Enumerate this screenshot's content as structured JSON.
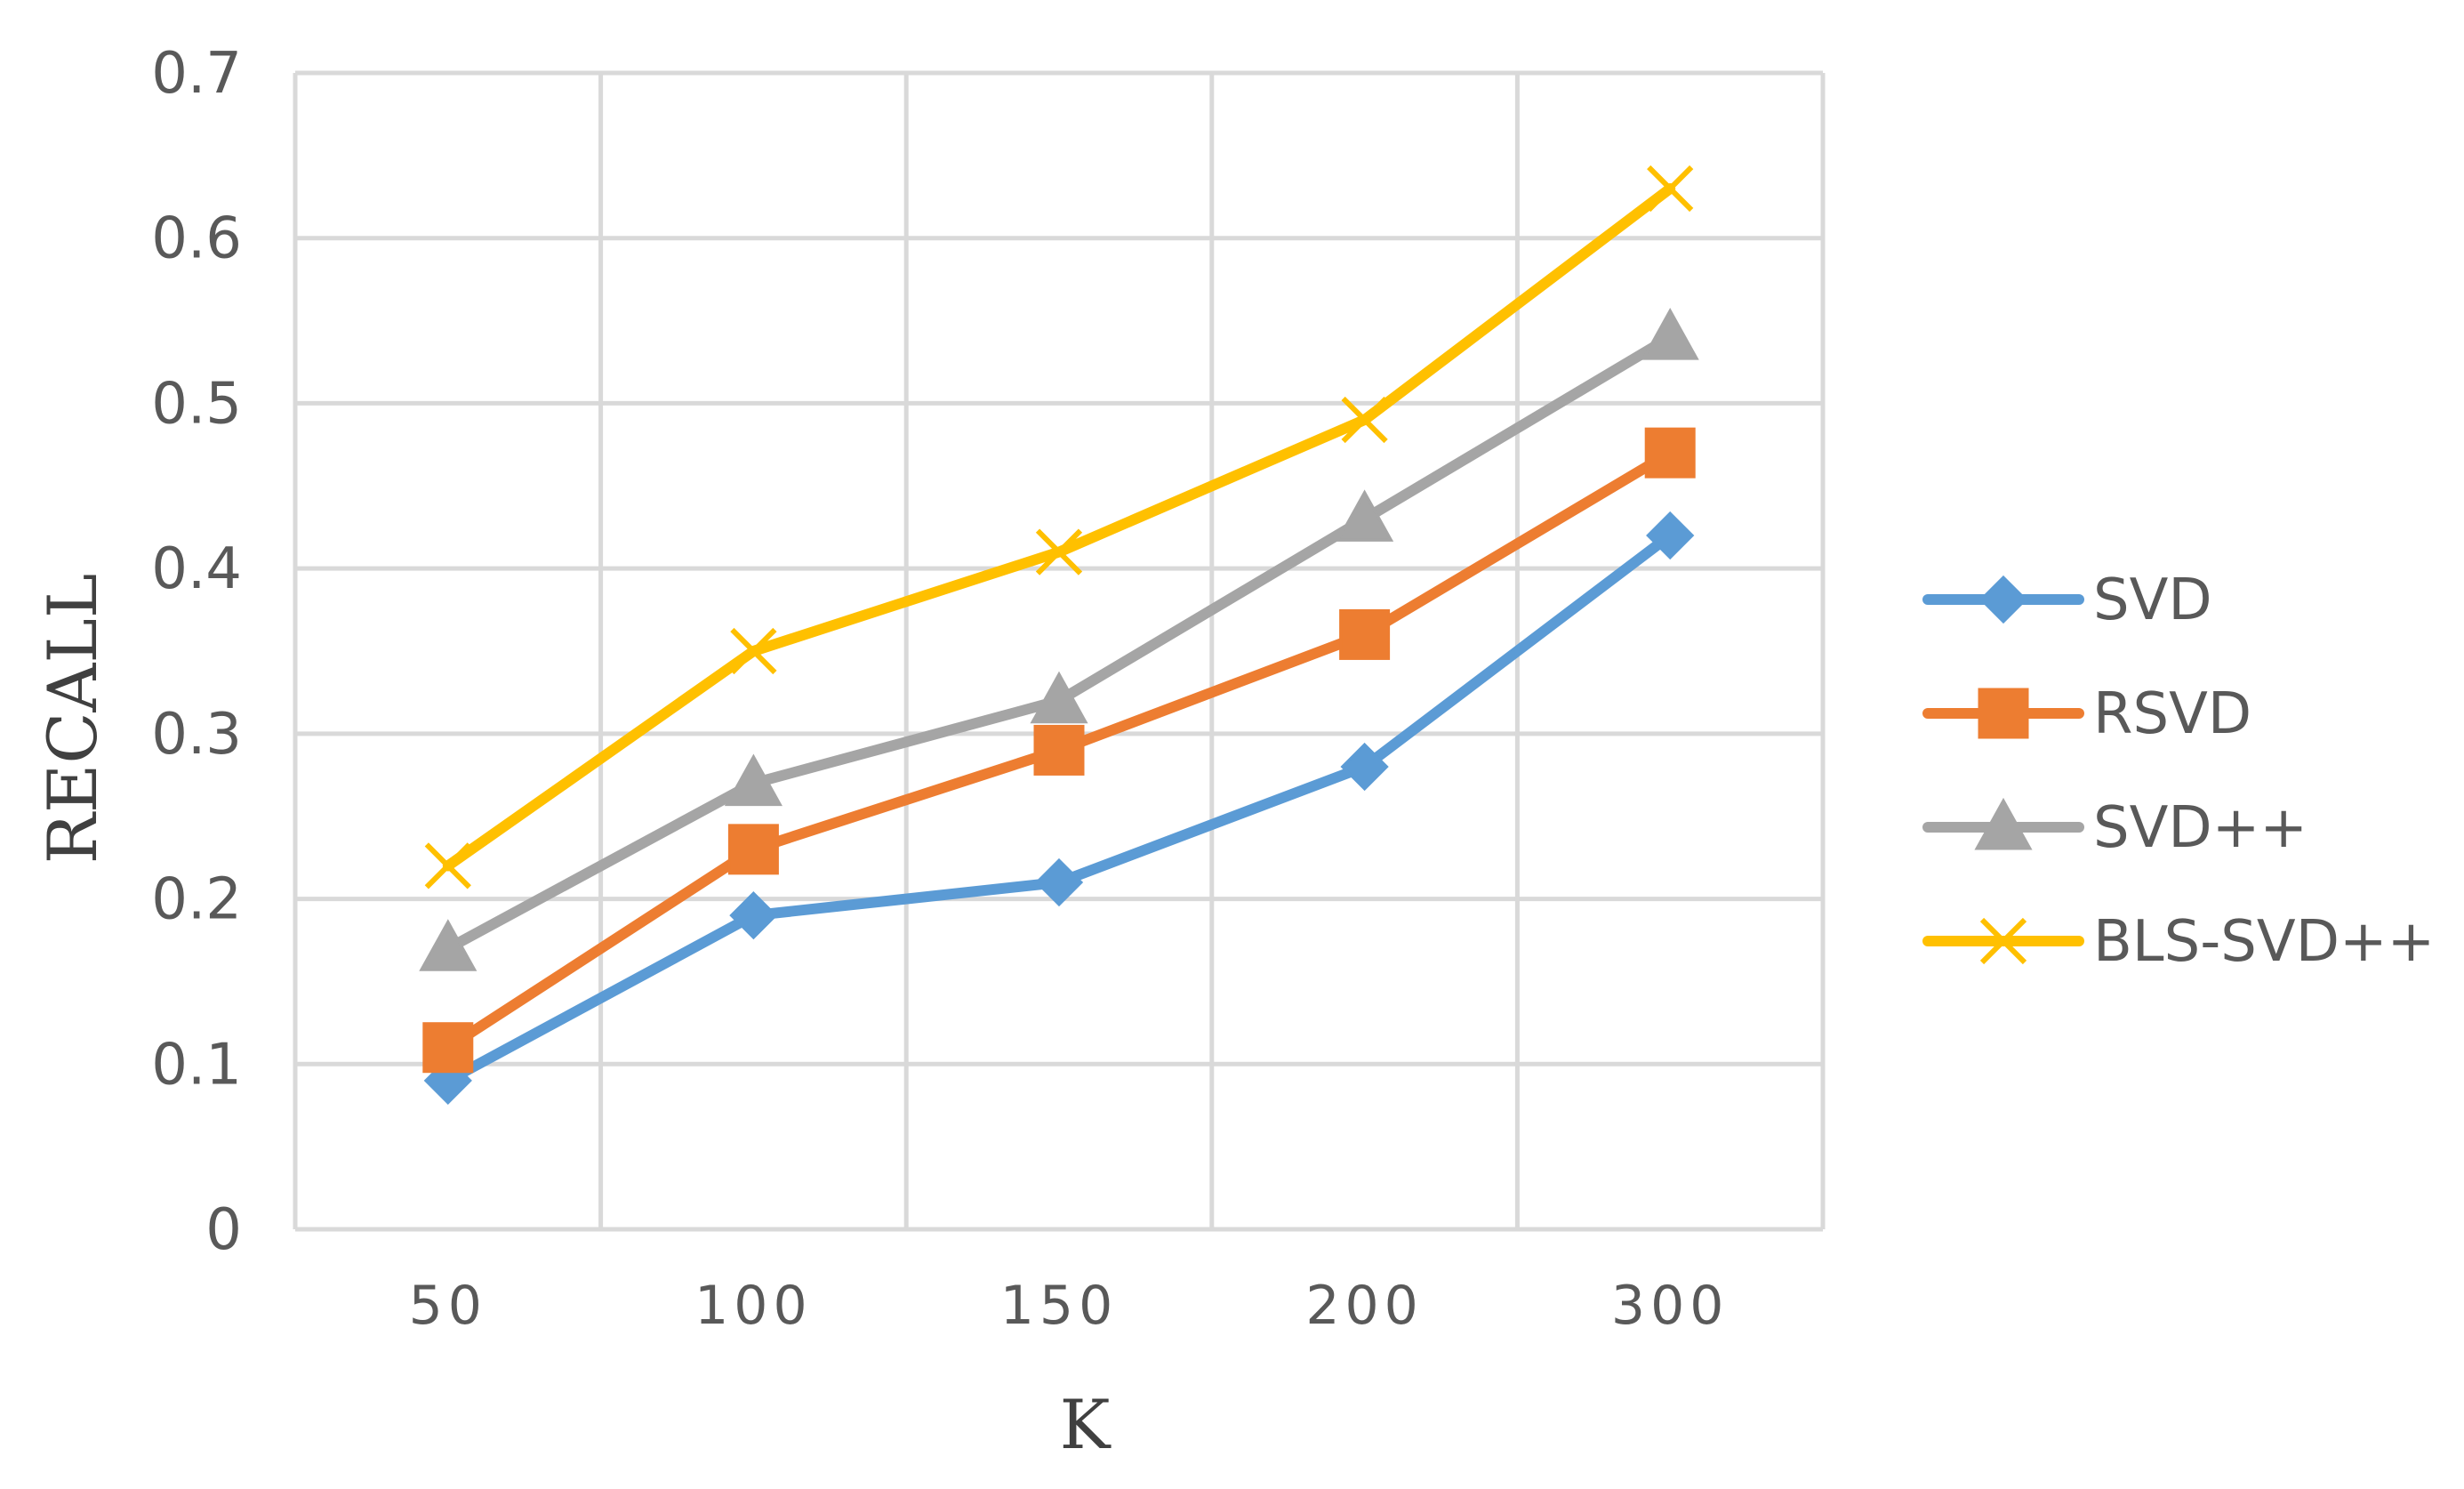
{
  "chart_data": {
    "type": "line",
    "title": "",
    "xlabel": "K",
    "ylabel": "RECALL",
    "categories": [
      "50",
      "100",
      "150",
      "200",
      "300"
    ],
    "ylim": [
      0,
      0.7
    ],
    "yticks": [
      "0",
      "0.1",
      "0.2",
      "0.3",
      "0.4",
      "0.5",
      "0.6",
      "0.7"
    ],
    "grid": true,
    "legend_position": "right",
    "series": [
      {
        "name": "SVD",
        "marker": "diamond",
        "color": "#5B9BD5",
        "values": [
          0.09,
          0.19,
          0.21,
          0.28,
          0.42
        ]
      },
      {
        "name": "RSVD",
        "marker": "square",
        "color": "#ED7D31",
        "values": [
          0.11,
          0.23,
          0.29,
          0.36,
          0.47
        ]
      },
      {
        "name": "SVD++",
        "marker": "triangle",
        "color": "#A5A5A5",
        "values": [
          0.17,
          0.27,
          0.32,
          0.43,
          0.54
        ]
      },
      {
        "name": "BLS-SVD++",
        "marker": "x",
        "color": "#FFC000",
        "values": [
          0.22,
          0.35,
          0.41,
          0.49,
          0.63
        ]
      }
    ]
  }
}
